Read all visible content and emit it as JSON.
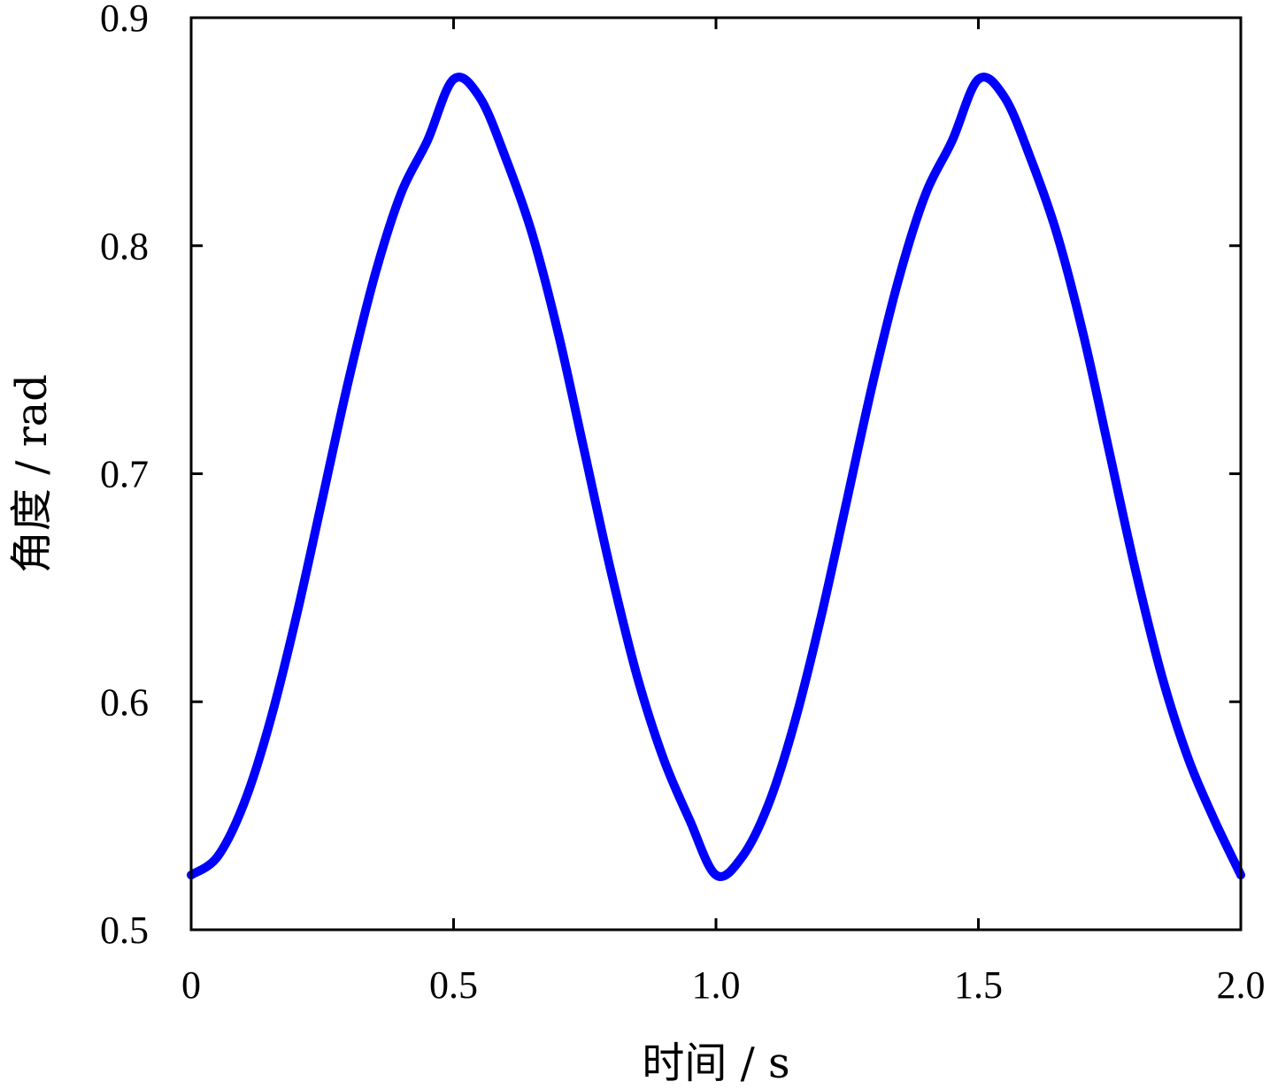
{
  "chart_data": {
    "type": "line",
    "title": "",
    "xlabel": "时间 / s",
    "ylabel": "角度 / rad",
    "xlim": [
      0,
      2.0
    ],
    "ylim": [
      0.5,
      0.9
    ],
    "x_ticks": [
      0,
      0.5,
      1.0,
      1.5,
      2.0
    ],
    "x_tick_labels": [
      "0",
      "0.5",
      "1.0",
      "1.5",
      "2.0"
    ],
    "y_ticks": [
      0.5,
      0.6,
      0.7,
      0.8,
      0.9
    ],
    "y_tick_labels": [
      "0.5",
      "0.6",
      "0.7",
      "0.8",
      "0.9"
    ],
    "grid": false,
    "series": [
      {
        "color": "#0000ff",
        "x": [
          0,
          0.05,
          0.1,
          0.15,
          0.2,
          0.25,
          0.3,
          0.35,
          0.4,
          0.45,
          0.5,
          0.55,
          0.6,
          0.65,
          0.7,
          0.75,
          0.8,
          0.85,
          0.9,
          0.95,
          1.0,
          1.05,
          1.1,
          1.15,
          1.2,
          1.25,
          1.3,
          1.35,
          1.4,
          1.45,
          1.5,
          1.55,
          1.6,
          1.65,
          1.7,
          1.75,
          1.8,
          1.85,
          1.9,
          1.95,
          2.0
        ],
        "y": [
          0.524,
          0.532,
          0.555,
          0.591,
          0.637,
          0.689,
          0.741,
          0.787,
          0.823,
          0.846,
          0.873,
          0.865,
          0.838,
          0.805,
          0.761,
          0.709,
          0.657,
          0.611,
          0.575,
          0.548,
          0.524,
          0.532,
          0.555,
          0.591,
          0.637,
          0.689,
          0.741,
          0.787,
          0.823,
          0.846,
          0.873,
          0.865,
          0.838,
          0.805,
          0.761,
          0.709,
          0.657,
          0.611,
          0.575,
          0.548,
          0.524
        ]
      }
    ]
  }
}
